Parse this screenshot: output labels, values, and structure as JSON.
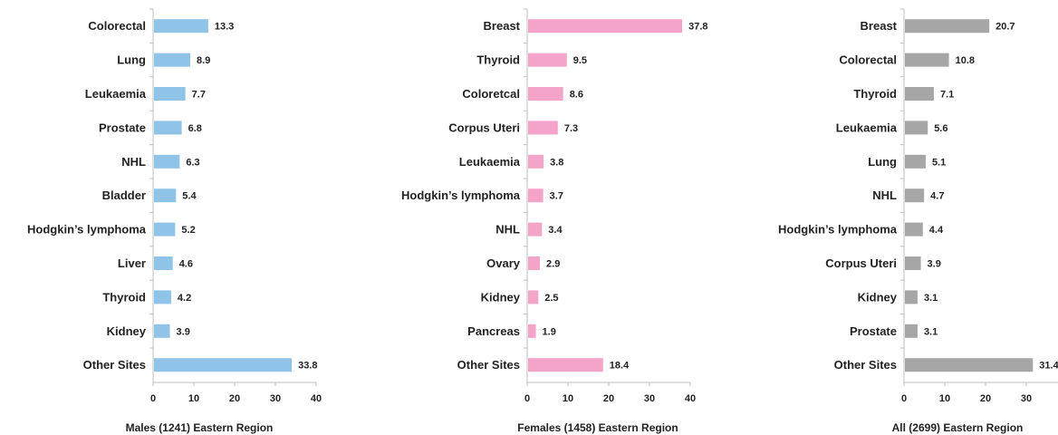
{
  "chart_data": [
    {
      "type": "bar",
      "orientation": "horizontal",
      "color": "#8fc3e8",
      "xlabel": "Males (1241) Eastern Region",
      "xlim": [
        0,
        40
      ],
      "xticks": [
        "0",
        "10",
        "20",
        "30",
        "40"
      ],
      "categories": [
        "Colorectal",
        "Lung",
        "Leukaemia",
        "Prostate",
        "NHL",
        "Bladder",
        "Hodgkin’s lymphoma",
        "Liver",
        "Thyroid",
        "Kidney",
        "Other Sites"
      ],
      "values": [
        13.3,
        8.9,
        7.7,
        6.8,
        6.3,
        5.4,
        5.2,
        4.6,
        4.2,
        3.9,
        33.8
      ],
      "value_labels": [
        "13.3",
        "8.9",
        "7.7",
        "6.8",
        "6.3",
        "5.4",
        "5.2",
        "4.6",
        "4.2",
        "3.9",
        "33.8"
      ]
    },
    {
      "type": "bar",
      "orientation": "horizontal",
      "color": "#f4a3c9",
      "xlabel": "Females  (1458) Eastern Region",
      "xlim": [
        0,
        40
      ],
      "xticks": [
        "0",
        "10",
        "20",
        "30",
        "40"
      ],
      "categories": [
        "Breast",
        "Thyroid",
        "Coloretcal",
        "Corpus Uteri",
        "Leukaemia",
        "Hodgkin’s lymphoma",
        "NHL",
        "Ovary",
        "Kidney",
        "Pancreas",
        "Other Sites"
      ],
      "values": [
        37.8,
        9.5,
        8.6,
        7.3,
        3.8,
        3.7,
        3.4,
        2.9,
        2.5,
        1.9,
        18.4
      ],
      "value_labels": [
        "37.8",
        "9.5",
        "8.6",
        "7.3",
        "3.8",
        "3.7",
        "3.4",
        "2.9",
        "2.5",
        "1.9",
        "18.4"
      ]
    },
    {
      "type": "bar",
      "orientation": "horizontal",
      "color": "#a6a6a6",
      "xlabel": "All (2699) Eastern Region",
      "xlim": [
        0,
        40
      ],
      "xticks": [
        "0",
        "10",
        "20",
        "30",
        "40"
      ],
      "categories": [
        "Breast",
        "Colorectal",
        "Thyroid",
        "Leukaemia",
        "Lung",
        "NHL",
        "Hodgkin’s lymphoma",
        "Corpus Uteri",
        "Kidney",
        "Prostate",
        "Other Sites"
      ],
      "values": [
        20.7,
        10.8,
        7.1,
        5.6,
        5.1,
        4.7,
        4.4,
        3.9,
        3.1,
        3.1,
        31.4
      ],
      "value_labels": [
        "20.7",
        "10.8",
        "7.1",
        "5.6",
        "5.1",
        "4.7",
        "4.4",
        "3.9",
        "3.1",
        "3.1",
        "31.4"
      ]
    }
  ]
}
